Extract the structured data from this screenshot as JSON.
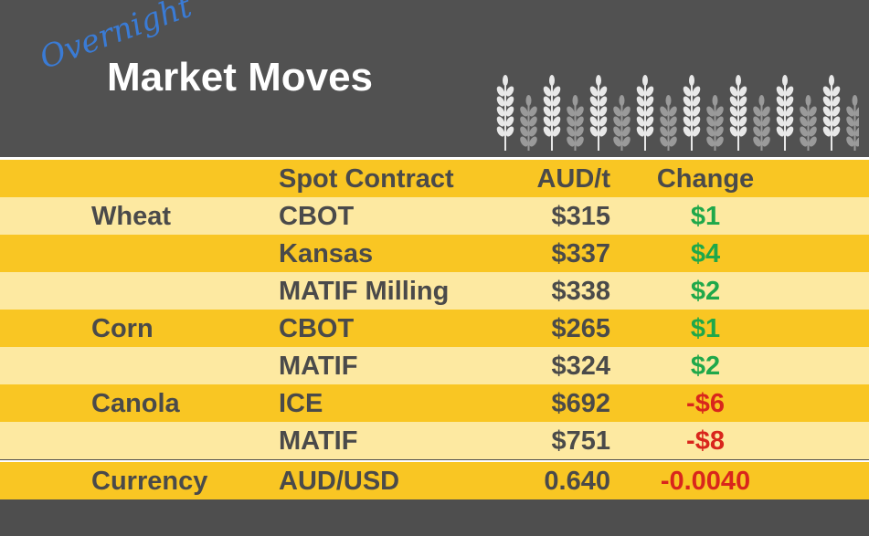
{
  "header": {
    "script_title": "Overnight",
    "title": "Market Moves"
  },
  "table": {
    "columns": [
      "Spot Contract",
      "AUD/t",
      "Change"
    ],
    "rows": [
      {
        "group": "Wheat",
        "contract": "CBOT",
        "price": "$315",
        "change": "$1"
      },
      {
        "contract": "Kansas",
        "price": "$337",
        "change": "$4"
      },
      {
        "contract": "MATIF Milling",
        "price": "$338",
        "change": "$2"
      },
      {
        "group": "Corn",
        "contract": "CBOT",
        "price": "$265",
        "change": "$1"
      },
      {
        "contract": "MATIF",
        "price": "$324",
        "change": "$2"
      },
      {
        "group": "Canola",
        "contract": "ICE",
        "price": "$692",
        "change": "-$6"
      },
      {
        "contract": "MATIF",
        "price": "$751",
        "change": "-$8"
      },
      {
        "group": "Currency",
        "contract": "AUD/USD",
        "price": "0.640",
        "change": "-0.0040"
      }
    ]
  }
}
